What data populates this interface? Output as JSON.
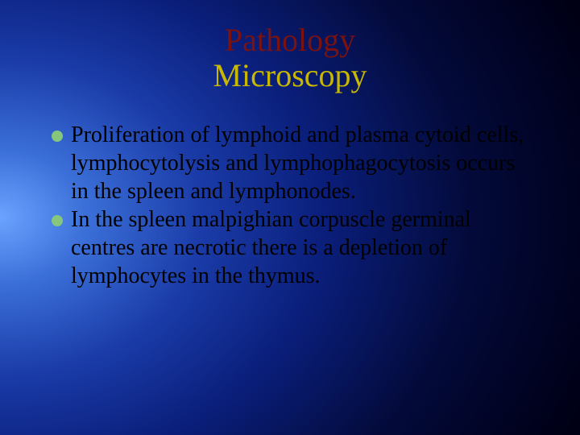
{
  "slide": {
    "title_line1": "Pathology",
    "title_line2": "Microscopy",
    "title_line1_color": "#7a1212",
    "title_line2_color": "#c8b800",
    "title_fontsize": 40,
    "bullets": [
      {
        "text": "Proliferation of lymphoid and plasma cytoid cells, lymphocytolysis and lymphophagocytosis occurs in the spleen and lymphonodes.",
        "dot_color": "#86c77d"
      },
      {
        "text": "In the spleen malpighian corpuscle germinal centres are necrotic there is a depletion of lymphocytes in the thymus.",
        "dot_color": "#86c77d"
      }
    ],
    "body_fontsize": 28,
    "body_color": "#000000",
    "background": {
      "type": "radial-gradient",
      "center": "left-center",
      "inner_color": "#6ba3ff",
      "mid_color": "#1a3ba8",
      "outer_color": "#000000"
    }
  }
}
